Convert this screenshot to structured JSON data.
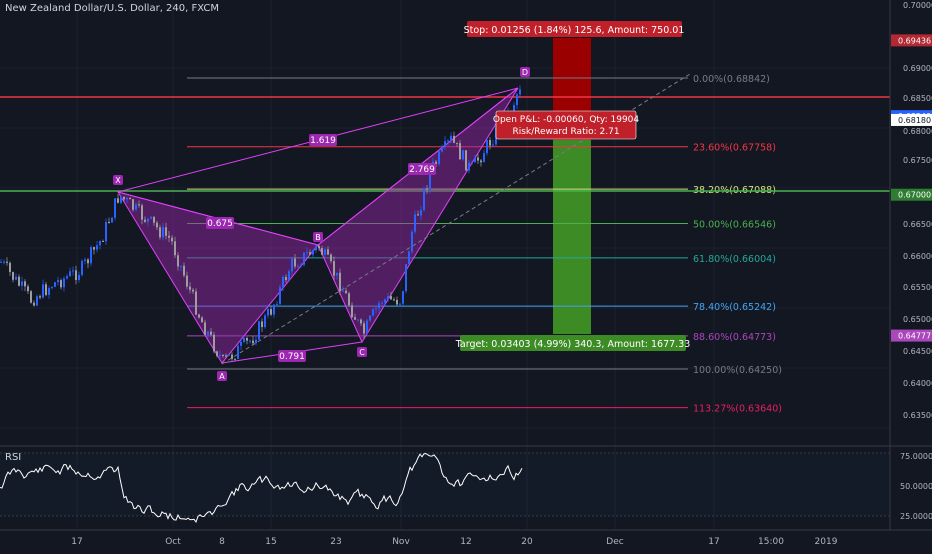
{
  "header": {
    "title": "New Zealand Dollar/U.S. Dollar, 240, FXCM"
  },
  "rsi_panel": {
    "label": "RSI"
  },
  "trade": {
    "stop_label": "Stop: 0.01256 (1.84%) 125.6, Amount: 750.01",
    "target_label": "Target: 0.03403 (4.99%) 340.3, Amount: 1677.33",
    "pnl_label": "Open P&L: -0.00060, Qty: 19904",
    "rr_label": "Risk/Reward Ratio: 2.71"
  },
  "fib_levels": [
    {
      "label": "0.00%(0.68842)",
      "price": 0.68842,
      "color": "#787b86"
    },
    {
      "label": "23.60%(0.67758)",
      "price": 0.67758,
      "color": "#f23645"
    },
    {
      "label": "38.20%(0.67088)",
      "price": 0.67088,
      "color": "#c8e676"
    },
    {
      "label": "50.00%(0.66546)",
      "price": 0.66546,
      "color": "#4caf50"
    },
    {
      "label": "61.80%(0.66004)",
      "price": 0.66004,
      "color": "#26a69a"
    },
    {
      "label": "78.40%(0.65242)",
      "price": 0.65242,
      "color": "#42a5f5"
    },
    {
      "label": "88.60%(0.64773)",
      "price": 0.64773,
      "color": "#ab47bc"
    },
    {
      "label": "100.00%(0.64250)",
      "price": 0.6425,
      "color": "#787b86"
    },
    {
      "label": "113.27%(0.63640)",
      "price": 0.6364,
      "color": "#e91e63"
    }
  ],
  "pattern": {
    "points": [
      {
        "name": "X",
        "price": 0.67,
        "date": "Sep 21"
      },
      {
        "name": "A",
        "price": 0.6425,
        "date": "Oct 8"
      },
      {
        "name": "B",
        "price": 0.6602,
        "date": "Oct 22"
      },
      {
        "name": "C",
        "price": 0.6477,
        "date": "Oct 29"
      },
      {
        "name": "D",
        "price": 0.6884,
        "date": "Nov 18"
      }
    ],
    "ratios": [
      "1.619",
      "0.675",
      "2.769",
      "0.791"
    ]
  },
  "price_axis": {
    "ticks": [
      "0.70000",
      "0.69000",
      "0.68500",
      "0.68000",
      "0.67500",
      "0.66500",
      "0.66000",
      "0.65500",
      "0.65000",
      "0.64500",
      "0.64000",
      "0.63500"
    ],
    "tags": [
      {
        "label": "0.69436",
        "price": 0.69436,
        "color": "#b22833"
      },
      {
        "label": "0.68240",
        "price": 0.6824,
        "color": "#2962ff"
      },
      {
        "label": "0.68180",
        "price": 0.6818,
        "color": "#ffffff"
      },
      {
        "label": "0.67000",
        "price": 0.67,
        "color": "#2e7d32"
      },
      {
        "label": "0.64777",
        "price": 0.64777,
        "color": "#ab47bc"
      }
    ]
  },
  "rsi_axis": {
    "ticks": [
      "75.0000",
      "50.0000",
      "25.0000"
    ]
  },
  "time_axis": {
    "ticks": [
      "17",
      "Oct",
      "8",
      "15",
      "23",
      "Nov",
      "12",
      "20",
      "Dec",
      "17",
      "15:00",
      "2019"
    ]
  }
}
